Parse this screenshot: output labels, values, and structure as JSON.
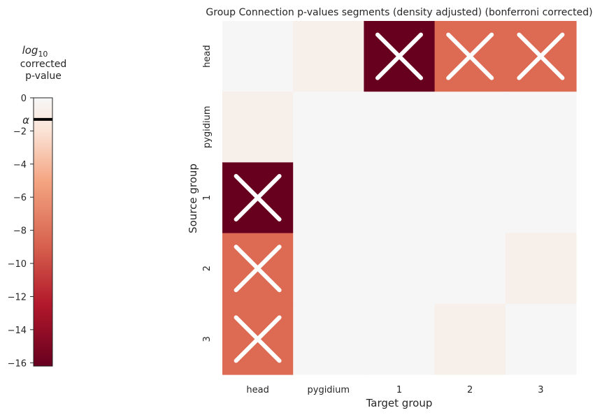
{
  "chart_data": [
    {
      "type": "heatmap",
      "title": "Group Connection p-values segments (density adjusted) (bonferroni corrected)",
      "xlabel": "Target group",
      "ylabel": "Source group",
      "x_categories": [
        "head",
        "pygidium",
        "1",
        "2",
        "3"
      ],
      "y_categories": [
        "head",
        "pygidium",
        "1",
        "2",
        "3"
      ],
      "values_log10_corrected_p": [
        [
          0.0,
          -0.3,
          -16.0,
          -9.5,
          -9.5
        ],
        [
          -0.3,
          0.0,
          0.0,
          0.0,
          0.0
        ],
        [
          -16.0,
          0.0,
          0.0,
          0.0,
          0.0
        ],
        [
          -9.5,
          0.0,
          0.0,
          0.0,
          -0.3
        ],
        [
          -9.5,
          0.0,
          0.0,
          -0.3,
          0.0
        ]
      ],
      "significant": [
        [
          false,
          false,
          true,
          true,
          true
        ],
        [
          false,
          false,
          false,
          false,
          false
        ],
        [
          true,
          false,
          false,
          false,
          false
        ],
        [
          true,
          false,
          false,
          false,
          false
        ],
        [
          true,
          false,
          false,
          false,
          false
        ]
      ],
      "cell_colors": {
        "white": "#f6f6f6",
        "faint": "#f7efea",
        "medium": "#dd6a52",
        "dark": "#67001f"
      },
      "marker_color": "#ffffff"
    },
    {
      "type": "colorbar",
      "title_main": "log",
      "title_sub": "10",
      "title_line2": "corrected",
      "title_line3": "p-value",
      "ticks": [
        0,
        -2,
        -4,
        -6,
        -8,
        -10,
        -12,
        -14,
        -16
      ],
      "tick_labels": [
        "0",
        "−2",
        "−4",
        "−6",
        "−8",
        "−10",
        "−12",
        "−14",
        "−16"
      ],
      "range": [
        -16.2,
        0
      ],
      "alpha_label": "α",
      "alpha_value": -1.3,
      "colormap_stops": [
        {
          "value": 0,
          "color": "#f7f7f7"
        },
        {
          "value": -2,
          "color": "#fbe3d6"
        },
        {
          "value": -5,
          "color": "#f4a582"
        },
        {
          "value": -9,
          "color": "#d6604d"
        },
        {
          "value": -12.5,
          "color": "#b2182b"
        },
        {
          "value": -16.2,
          "color": "#67001f"
        }
      ]
    }
  ]
}
